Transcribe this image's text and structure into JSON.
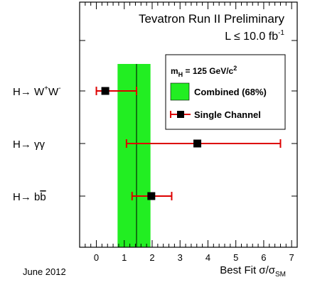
{
  "chart_data": {
    "type": "scatter",
    "title": "Tevatron Run II Preliminary",
    "subtitle_text": "L ≤ 10.0 fb",
    "subtitle_sup": "-1",
    "date_note": "June 2012",
    "xlabel_main": "Best Fit σ/σ",
    "xlabel_sub": "SM",
    "xlim": [
      -0.6,
      7.2
    ],
    "x_ticks": [
      "0",
      "1",
      "2",
      "3",
      "4",
      "5",
      "6",
      "7"
    ],
    "x_tick_values": [
      0,
      1,
      2,
      3,
      4,
      5,
      6,
      7
    ],
    "combined": {
      "central": 1.44,
      "low": 0.76,
      "high": 1.94
    },
    "channels": [
      {
        "base": "H→ W",
        "sup1": "+",
        "mid": "W",
        "sup2": "-",
        "best": 0.32,
        "low": 0.0,
        "high": 1.44
      },
      {
        "base": "H→ γγ",
        "best": 3.62,
        "low": 1.08,
        "high": 6.6
      },
      {
        "base": "H→ b",
        "overbar": "b",
        "best": 1.97,
        "low": 1.28,
        "high": 2.7
      }
    ],
    "legend": {
      "mass_label": "m",
      "mass_sub": "H",
      "mass_value": " = 125 GeV/c",
      "mass_sup": "2",
      "combined_label": "Combined (68%)",
      "single_label": "Single Channel"
    },
    "colors": {
      "band": "#22ee22",
      "error_bar": "#dd0000",
      "marker": "#000000"
    }
  }
}
